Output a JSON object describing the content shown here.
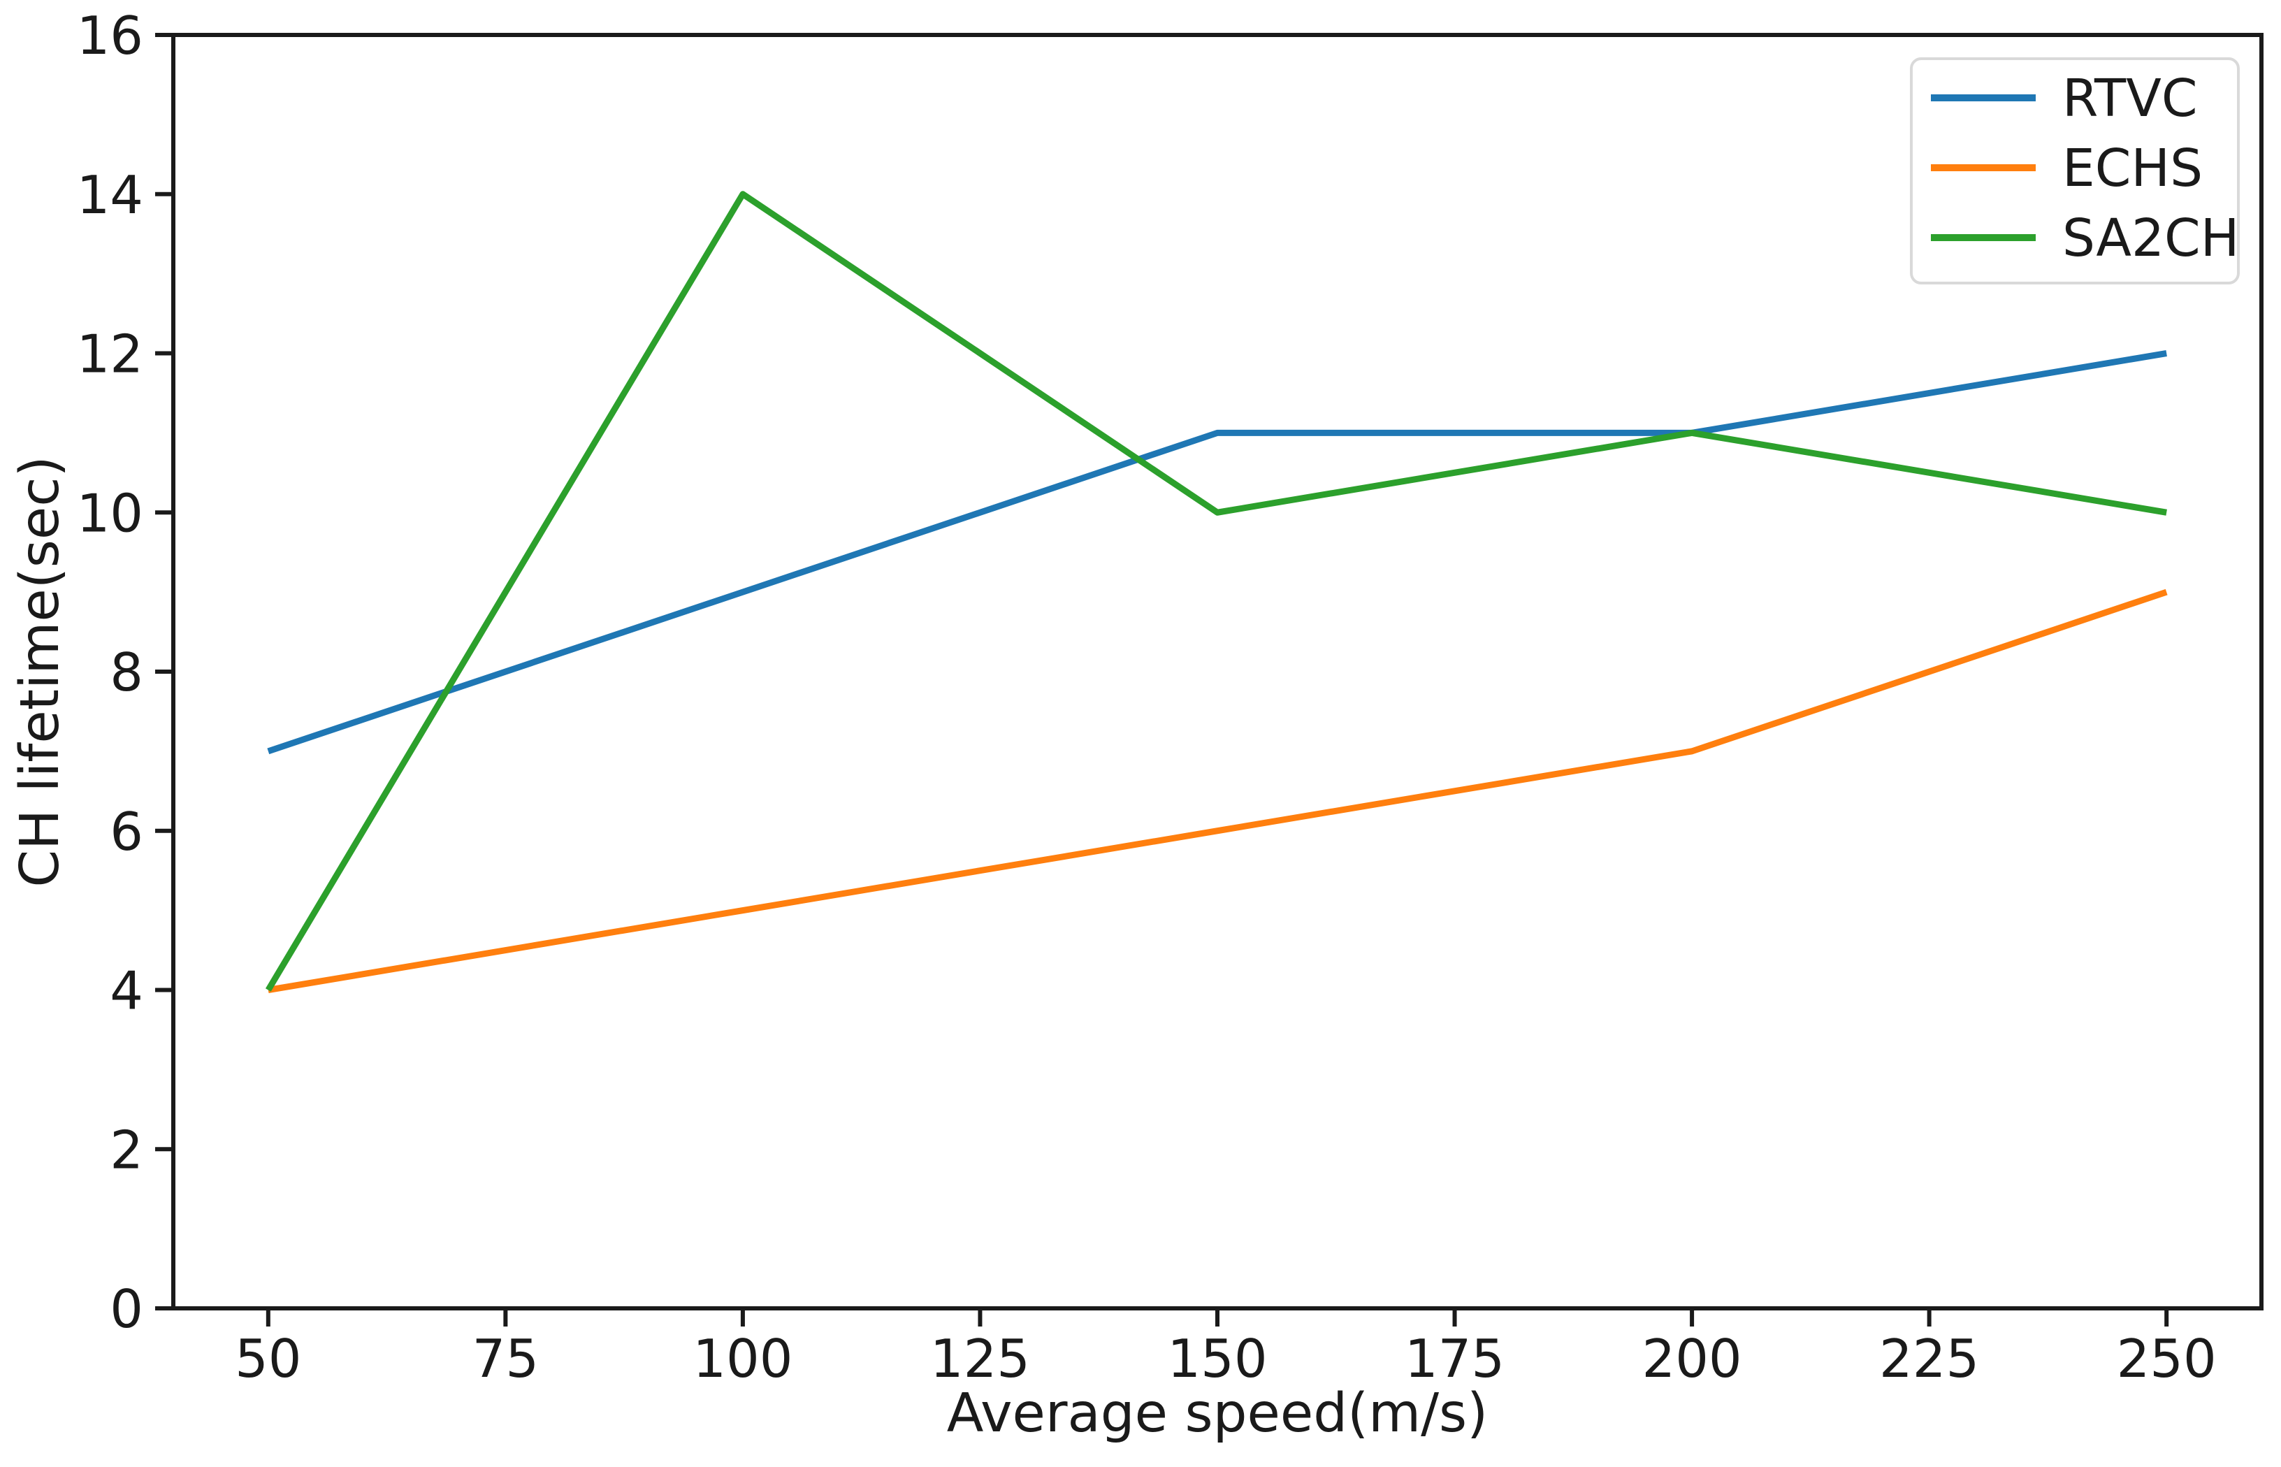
{
  "figure": {
    "background": "#ffffff"
  },
  "chart_data": {
    "type": "line",
    "title": "",
    "x": [
      50,
      100,
      150,
      200,
      250
    ],
    "series": [
      {
        "name": "RTVC",
        "color": "#1f77b4",
        "values": [
          7,
          9,
          11,
          11,
          12
        ]
      },
      {
        "name": "ECHS",
        "color": "#ff7f0e",
        "values": [
          4,
          5,
          6,
          7,
          9
        ]
      },
      {
        "name": "SA2CH",
        "color": "#2ca02c",
        "values": [
          4,
          14,
          10,
          11,
          10
        ]
      }
    ],
    "xlabel": "Average speed(m/s)",
    "ylabel": "CH lifetime(sec)",
    "xticks": [
      50,
      75,
      100,
      125,
      150,
      175,
      200,
      225,
      250
    ],
    "yticks": [
      0,
      2,
      4,
      6,
      8,
      10,
      12,
      14,
      16
    ],
    "xlim": [
      40,
      260
    ],
    "ylim": [
      0,
      16
    ],
    "grid": false,
    "legend": {
      "position": "upper right",
      "entries": [
        "RTVC",
        "ECHS",
        "SA2CH"
      ]
    },
    "colors": {
      "text": "#1a1a1a",
      "spine": "#1a1a1a",
      "legend_border": "#d9d9d9",
      "legend_background": "#ffffff"
    }
  }
}
